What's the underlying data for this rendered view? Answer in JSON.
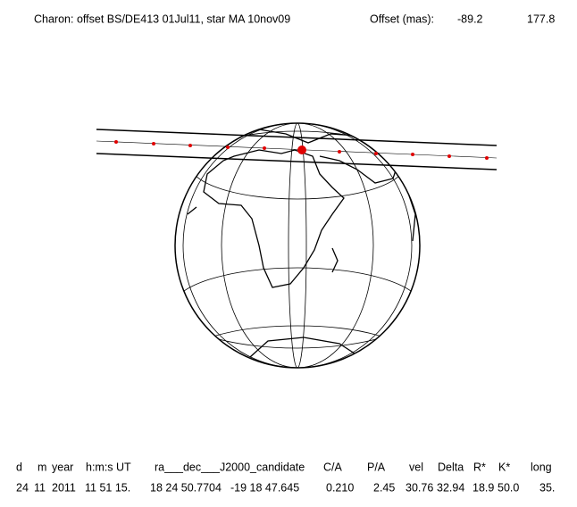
{
  "header": {
    "title": "Charon: offset BS/DE413 01Jul11, star MA 10nov09",
    "offset_label": "Offset (mas):",
    "offset_values": [
      "-89.2",
      "177.8"
    ]
  },
  "table": {
    "columns": [
      "d",
      "m",
      "year",
      "h:m:s UT",
      "ra___dec___J2000_candidate",
      "C/A",
      "P/A",
      "vel",
      "Delta",
      "R*",
      "K*",
      "long"
    ],
    "rows": [
      [
        "24",
        "11",
        "2011",
        "11 51 15.",
        "18 24 50.7704",
        "-19 18 47.645",
        "0.210",
        "2.45",
        "30.76",
        "32.94",
        "18.9",
        "50.0",
        "35."
      ]
    ]
  }
}
